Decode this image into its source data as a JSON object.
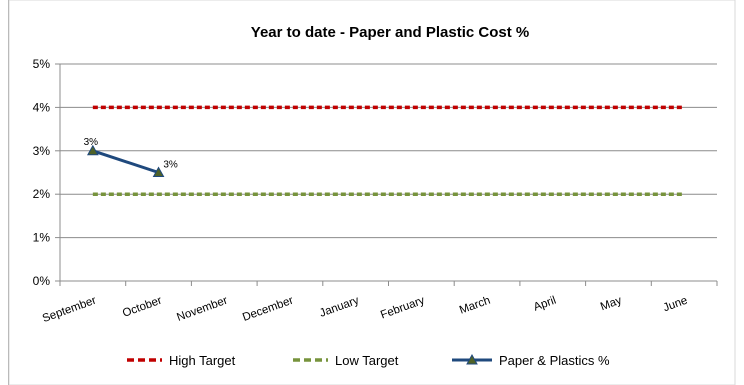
{
  "chart_data": {
    "type": "line",
    "title": "Year to date - Paper and Plastic Cost  %",
    "categories": [
      "September",
      "October",
      "November",
      "December",
      "January",
      "February",
      "March",
      "April",
      "May",
      "June"
    ],
    "yticks": [
      "0%",
      "1%",
      "2%",
      "3%",
      "4%",
      "5%"
    ],
    "ylim": [
      0,
      5
    ],
    "grid": true,
    "legend_position": "bottom",
    "series": [
      {
        "name": "High Target",
        "values": [
          4,
          4,
          4,
          4,
          4,
          4,
          4,
          4,
          4,
          4
        ],
        "color": "#c00000",
        "style": "dashed"
      },
      {
        "name": "Low Target",
        "values": [
          2,
          2,
          2,
          2,
          2,
          2,
          2,
          2,
          2,
          2
        ],
        "color": "#77933c",
        "style": "dashed"
      },
      {
        "name": "Paper & Plastics %",
        "values": [
          3,
          2.5,
          null,
          null,
          null,
          null,
          null,
          null,
          null,
          null
        ],
        "data_labels": [
          "3%",
          "3%"
        ],
        "color": "#1f497d",
        "marker_color": "#4f6228",
        "style": "solid-triangle"
      }
    ]
  }
}
